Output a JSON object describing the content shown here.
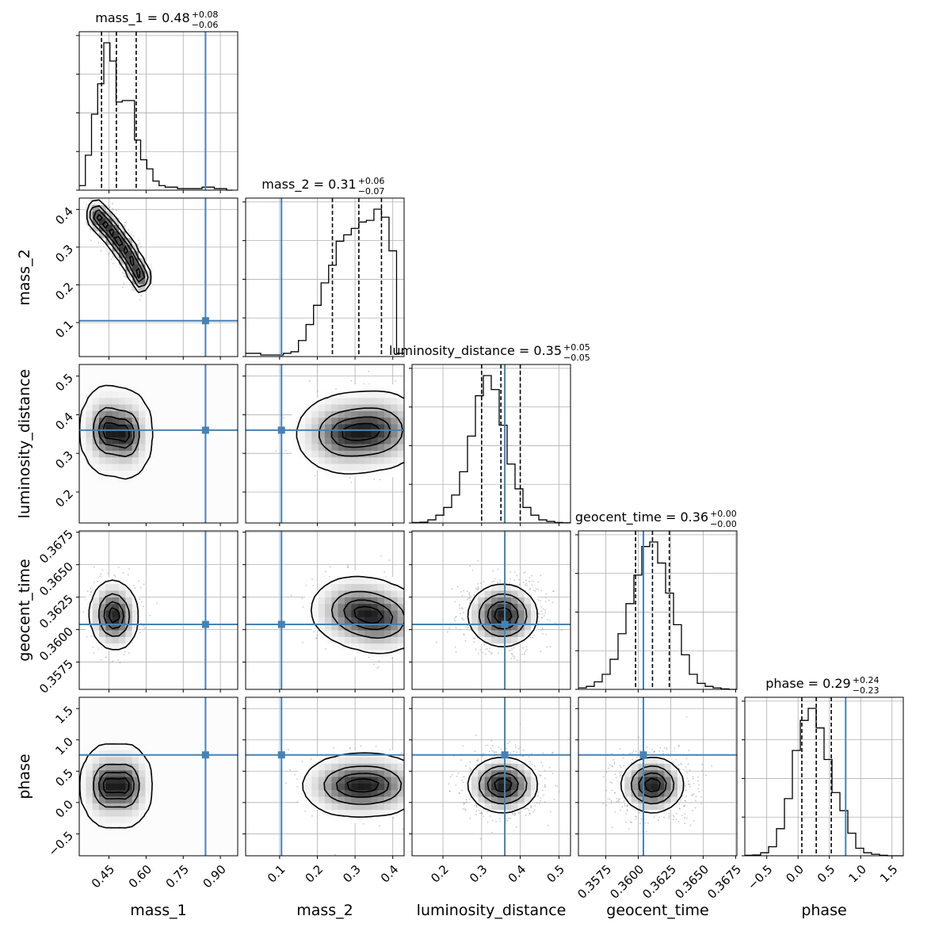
{
  "chart_data": {
    "type": "corner",
    "parameters": [
      "mass_1",
      "mass_2",
      "luminosity_distance",
      "geocent_time",
      "phase"
    ],
    "axis_labels": [
      "mass_1",
      "mass_2",
      "luminosity_distance",
      "geocent_time",
      "phase"
    ],
    "ranges": [
      [
        0.33,
        0.97
      ],
      [
        0.01,
        0.43
      ],
      [
        0.12,
        0.53
      ],
      [
        0.3554,
        0.3676
      ],
      [
        -0.85,
        1.68
      ]
    ],
    "ticks": [
      {
        "values": [
          0.45,
          0.6,
          0.75,
          0.9
        ],
        "labels": [
          "0.45",
          "0.60",
          "0.75",
          "0.90"
        ]
      },
      {
        "values": [
          0.1,
          0.2,
          0.3,
          0.4
        ],
        "labels": [
          "0.1",
          "0.2",
          "0.3",
          "0.4"
        ]
      },
      {
        "values": [
          0.2,
          0.3,
          0.4,
          0.5
        ],
        "labels": [
          "0.2",
          "0.3",
          "0.4",
          "0.5"
        ]
      },
      {
        "values": [
          0.3575,
          0.36,
          0.3625,
          0.365,
          0.3675
        ],
        "labels": [
          "0.3575",
          "0.3600",
          "0.3625",
          "0.3650",
          "0.3675"
        ]
      },
      {
        "values": [
          -0.5,
          0.0,
          0.5,
          1.0,
          1.5
        ],
        "labels": [
          "−0.5",
          "0.0",
          "0.5",
          "1.0",
          "1.5"
        ]
      }
    ],
    "titles": [
      {
        "main": "mass_1 = 0.48",
        "plus": "+0.08",
        "minus": "−0.06"
      },
      {
        "main": "mass_2 = 0.31",
        "plus": "+0.06",
        "minus": "−0.07"
      },
      {
        "main": "luminosity_distance = 0.35",
        "plus": "+0.05",
        "minus": "−0.05"
      },
      {
        "main": "geocent_time = 0.36",
        "plus": "+0.00",
        "minus": "−0.00"
      },
      {
        "main": "phase = 0.29",
        "plus": "+0.24",
        "minus": "−0.23"
      }
    ],
    "quantiles": [
      [
        0.42,
        0.48,
        0.56
      ],
      [
        0.24,
        0.31,
        0.37
      ],
      [
        0.3,
        0.35,
        0.4
      ],
      [
        0.3598,
        0.3611,
        0.3624
      ],
      [
        0.06,
        0.29,
        0.53
      ]
    ],
    "truths": [
      0.84,
      0.105,
      0.36,
      0.3604,
      0.76
    ],
    "histograms": [
      {
        "edges_range": [
          0.33,
          0.95
        ],
        "counts": [
          3,
          23,
          50,
          70,
          97,
          85,
          58,
          59,
          59,
          33,
          20,
          14,
          6,
          3,
          2,
          2,
          1,
          1,
          1,
          1,
          2,
          2,
          1,
          1,
          0
        ]
      },
      {
        "edges_range": [
          0.01,
          0.43
        ],
        "counts": [
          2,
          2,
          1,
          1,
          1,
          2,
          3,
          10,
          20,
          32,
          46,
          57,
          72,
          76,
          80,
          84,
          85,
          92,
          87,
          66,
          2
        ]
      },
      {
        "edges_range": [
          0.12,
          0.53
        ],
        "counts": [
          0.3,
          0.5,
          2,
          5,
          10,
          18,
          33,
          56,
          82,
          95,
          86,
          63,
          38,
          22,
          10,
          5,
          2,
          1,
          0.3,
          0.1
        ]
      },
      {
        "edges_range": [
          0.3554,
          0.3676
        ],
        "counts": [
          1,
          2,
          5,
          10,
          20,
          37,
          57,
          76,
          95,
          98,
          84,
          64,
          43,
          23,
          10,
          4,
          2,
          1,
          0.3,
          0
        ]
      },
      {
        "edges_range": [
          -0.85,
          1.68
        ],
        "counts": [
          0.3,
          0.5,
          2,
          6,
          18,
          38,
          70,
          90,
          98,
          85,
          64,
          42,
          30,
          15,
          5,
          2,
          1,
          0.3,
          0,
          0
        ]
      }
    ],
    "blobs": {
      "1,0": {
        "type": "banana",
        "path": [
          [
            0.4,
            0.385
          ],
          [
            0.45,
            0.35
          ],
          [
            0.52,
            0.29
          ],
          [
            0.58,
            0.22
          ]
        ],
        "sigma": [
          0.018,
          0.02
        ]
      },
      "2,0": {
        "type": "gauss",
        "cx": [
          0.44,
          0.52
        ],
        "cy": [
          0.36,
          0.35
        ],
        "sx": 0.035,
        "sy": 0.038
      },
      "2,1": {
        "type": "gauss",
        "cx": [
          0.27,
          0.36
        ],
        "cy": [
          0.35,
          0.36
        ],
        "sx": 0.05,
        "sy": 0.04
      },
      "3,0": {
        "type": "gauss",
        "cx": [
          0.45,
          0.49
        ],
        "cy": [
          0.3612,
          0.361
        ],
        "sx": 0.035,
        "sy": 0.0011
      },
      "3,1": {
        "type": "gauss",
        "cx": [
          0.3,
          0.37
        ],
        "cy": [
          0.3615,
          0.3608
        ],
        "sx": 0.05,
        "sy": 0.0011
      },
      "3,2": {
        "type": "gauss",
        "cx": [
          0.355
        ],
        "cy": [
          0.3611
        ],
        "sx": 0.045,
        "sy": 0.0012
      },
      "4,0": {
        "type": "gauss",
        "cx": [
          0.44,
          0.52
        ],
        "cy": [
          0.27,
          0.27
        ],
        "sx": 0.035,
        "sy": 0.22
      },
      "4,1": {
        "type": "gauss",
        "cx": [
          0.28,
          0.36
        ],
        "cy": [
          0.27,
          0.28
        ],
        "sx": 0.05,
        "sy": 0.2
      },
      "4,2": {
        "type": "gauss",
        "cx": [
          0.355
        ],
        "cy": [
          0.28
        ],
        "sx": 0.045,
        "sy": 0.22
      },
      "4,3": {
        "type": "gauss",
        "cx": [
          0.3611
        ],
        "cy": [
          0.28
        ],
        "sx": 0.0012,
        "sy": 0.22
      }
    },
    "colors": {
      "truth": "#4682b4",
      "contour": "#000000",
      "grid": "#b0b0b0",
      "point": "#9a9a9a"
    },
    "grid": true
  }
}
